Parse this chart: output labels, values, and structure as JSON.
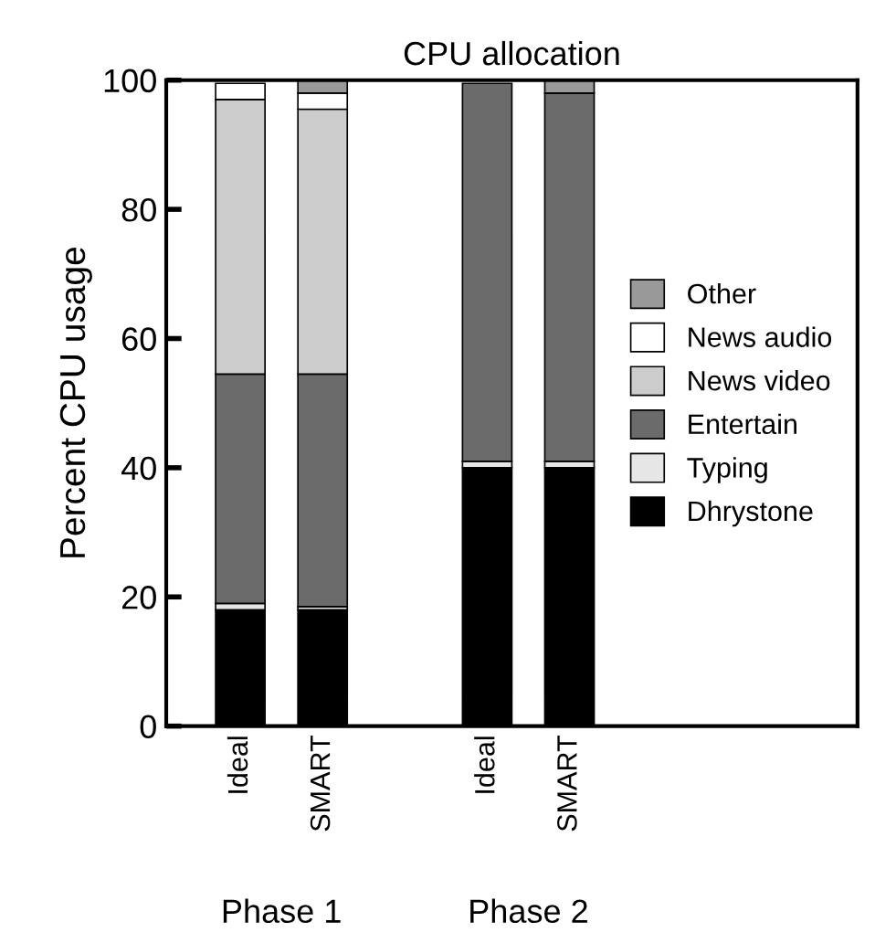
{
  "chart_data": {
    "type": "bar",
    "title": "CPU allocation",
    "ylabel": "Percent CPU usage",
    "categories": [
      "Ideal",
      "SMART",
      null,
      "Ideal",
      "SMART",
      null,
      null,
      null
    ],
    "stacked": true,
    "ylim": [
      0,
      100
    ],
    "yticks": [
      0,
      20,
      40,
      60,
      80,
      100
    ],
    "legend": "right",
    "grid": false,
    "series": [
      {
        "name": "Dhrystone",
        "color": "#000000",
        "values": [
          18,
          18,
          null,
          40,
          40,
          null,
          null,
          null
        ]
      },
      {
        "name": "Typing",
        "color": "#e6e6e6",
        "values": [
          1,
          0.5,
          null,
          1,
          1,
          null,
          null,
          null
        ]
      },
      {
        "name": "Entertain",
        "color": "#6b6b6b",
        "values": [
          35.5,
          36,
          null,
          58.5,
          57,
          null,
          null,
          null
        ]
      },
      {
        "name": "News video",
        "color": "#cccccc",
        "values": [
          42.5,
          41,
          null,
          null,
          null,
          null,
          null,
          null
        ]
      },
      {
        "name": "News audio",
        "color": "#ffffff",
        "values": [
          2.5,
          2.5,
          null,
          null,
          null,
          null,
          null,
          null
        ]
      },
      {
        "name": "Other",
        "color": "#999999",
        "values": [
          null,
          2,
          null,
          null,
          2,
          null,
          null,
          null
        ]
      }
    ],
    "annotations": [
      "Phase 1",
      "Phase 2"
    ]
  }
}
